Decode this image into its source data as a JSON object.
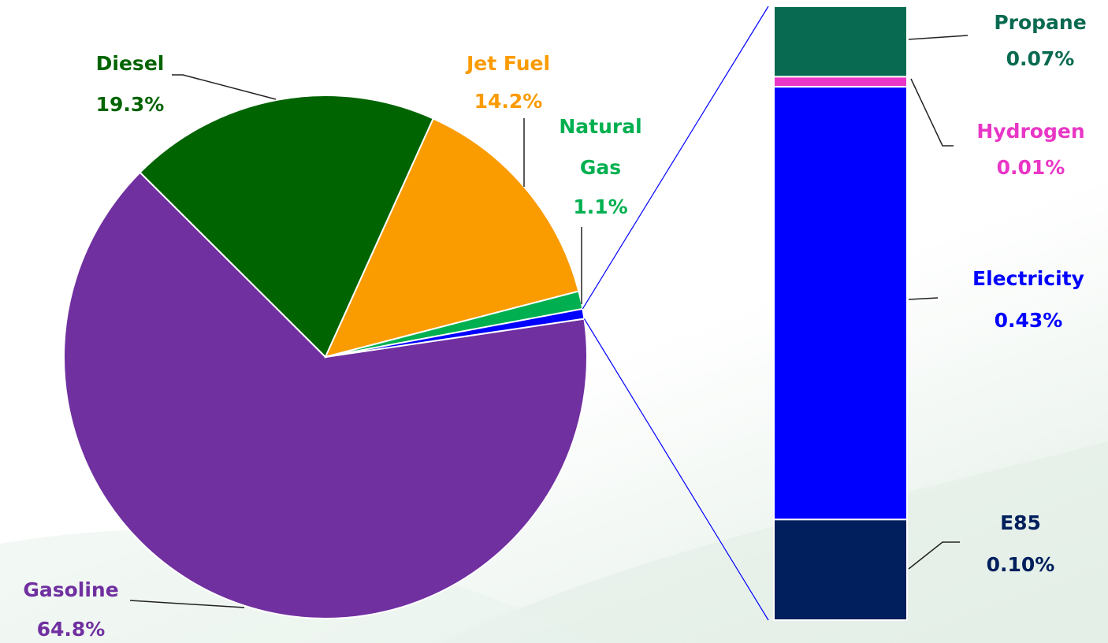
{
  "chart_data": [
    {
      "type": "pie",
      "categories": [
        "Gasoline",
        "Diesel",
        "Jet Fuel",
        "Natural Gas"
      ],
      "values": [
        64.8,
        19.3,
        14.2,
        1.1
      ],
      "value_labels": [
        "64.8%",
        "19.3%",
        "14.2%",
        "1.1%"
      ],
      "colors": [
        "#7030a0",
        "#006400",
        "#fa9b00",
        "#00b050"
      ],
      "other_color": "#0000ff"
    },
    {
      "type": "stacked-bar",
      "categories": [
        "Propane",
        "Hydrogen",
        "Electricity",
        "E85"
      ],
      "values": [
        0.07,
        0.01,
        0.43,
        0.1
      ],
      "value_labels": [
        "0.07%",
        "0.01%",
        "0.43%",
        "0.10%"
      ],
      "colors": [
        "#086a50",
        "#e936c6",
        "#0000ff",
        "#001f5c"
      ]
    }
  ]
}
